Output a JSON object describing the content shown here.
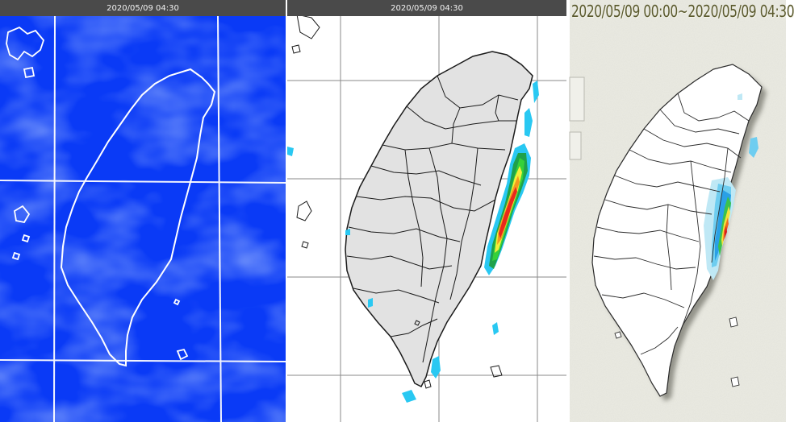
{
  "panels": {
    "satellite": {
      "timestamp": "2020/05/09 04:30"
    },
    "radar": {
      "timestamp": "2020/05/09 04:30"
    },
    "rainfall": {
      "title": "2020/05/09 00:00~2020/05/09 04:30"
    }
  },
  "colors": {
    "satellite_background": "#0a3af6",
    "coastline_white": "#ffffff",
    "land_gray": "#e2e2e2",
    "titlebar": "#4a4a4a",
    "radar_scale": [
      "#29c8f2",
      "#1fa14a",
      "#35d13a",
      "#f2ef3a",
      "#f29a1f",
      "#e8291c"
    ],
    "rain_scale": [
      "#bfe8f5",
      "#6ecdf0",
      "#2aa0e6",
      "#3cc24a",
      "#f2e23a",
      "#f06c1f",
      "#d81c1c"
    ]
  }
}
